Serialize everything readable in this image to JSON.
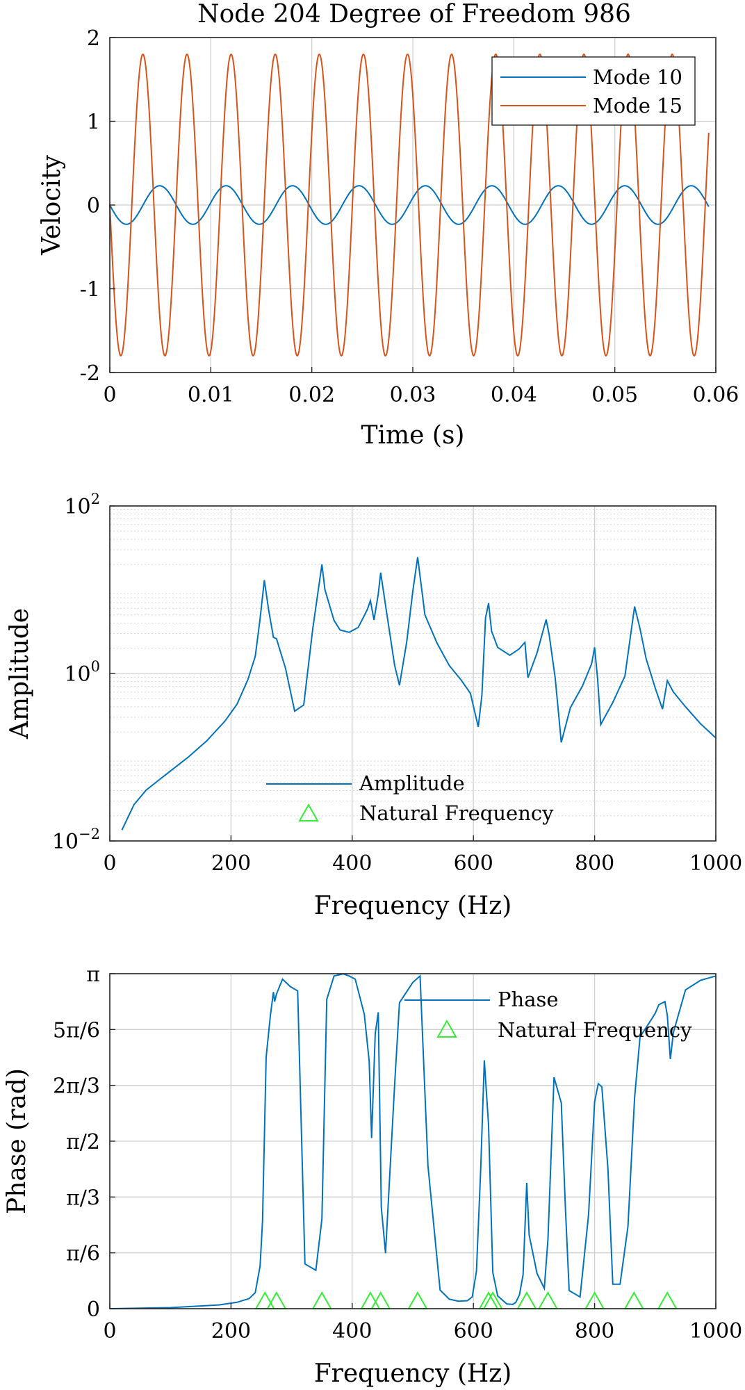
{
  "chart_data": [
    {
      "type": "line",
      "title": "Node 204 Degree of Freedom 986",
      "xlabel": "Time (s)",
      "ylabel": "Velocity",
      "xlim": [
        0,
        0.06
      ],
      "ylim": [
        -2,
        2
      ],
      "xticks": [
        0,
        0.01,
        0.02,
        0.03,
        0.04,
        0.05,
        0.06
      ],
      "xtick_labels": [
        "0",
        "0.01",
        "0.02",
        "0.03",
        "0.04",
        "0.05",
        "0.06"
      ],
      "yticks": [
        -2,
        -1,
        0,
        1,
        2
      ],
      "ytick_labels": [
        "-2",
        "-1",
        "0",
        "1",
        "2"
      ],
      "grid": true,
      "legend_position": "top-right",
      "series": [
        {
          "name": "Mode 10",
          "color": "#0072BD",
          "amplitude": 0.23,
          "frequency_hz": 152,
          "t_end": 0.0593
        },
        {
          "name": "Mode 15",
          "color": "#D95319",
          "amplitude": 1.8,
          "frequency_hz": 229,
          "t_end": 0.0593
        }
      ]
    },
    {
      "type": "line",
      "xlabel": "Frequency (Hz)",
      "ylabel": "Amplitude",
      "xlim": [
        0,
        1000
      ],
      "ylim": [
        0.01,
        100
      ],
      "yscale": "log",
      "xticks": [
        0,
        200,
        400,
        600,
        800,
        1000
      ],
      "xtick_labels": [
        "0",
        "200",
        "400",
        "600",
        "800",
        "1000"
      ],
      "yticks": [
        0.01,
        1,
        100
      ],
      "ytick_labels": [
        {
          "base": "10",
          "exp": "−2"
        },
        {
          "base": "10",
          "exp": "0"
        },
        {
          "base": "10",
          "exp": "2"
        }
      ],
      "grid": true,
      "legend_position": "bottom-center",
      "series": [
        {
          "name": "Amplitude",
          "color": "#0072BD",
          "x": [
            20,
            40,
            60,
            80,
            100,
            130,
            160,
            190,
            210,
            228,
            240,
            248,
            255,
            262,
            270,
            275,
            290,
            305,
            320,
            335,
            350,
            355,
            370,
            380,
            395,
            410,
            425,
            430,
            436,
            443,
            447,
            455,
            470,
            478,
            490,
            500,
            508,
            520,
            540,
            560,
            580,
            595,
            608,
            614,
            620,
            625,
            630,
            640,
            660,
            675,
            685,
            690,
            705,
            720,
            725,
            735,
            745,
            760,
            780,
            795,
            800,
            805,
            810,
            830,
            850,
            866,
            875,
            885,
            900,
            912,
            920,
            930,
            950,
            975,
            1000
          ],
          "values": [
            0.0135,
            0.0272,
            0.0405,
            0.0527,
            0.0683,
            0.101,
            0.157,
            0.27,
            0.43,
            0.85,
            1.6,
            4.5,
            13.0,
            5.8,
            2.7,
            2.6,
            1.15,
            0.355,
            0.42,
            3.45,
            20.0,
            10.0,
            4.3,
            3.3,
            3.1,
            3.55,
            5.8,
            7.4,
            4.35,
            8.9,
            16.0,
            6.5,
            1.25,
            0.72,
            2.4,
            9.6,
            24.5,
            5.0,
            2.3,
            1.25,
            0.83,
            0.58,
            0.23,
            0.55,
            4.6,
            6.9,
            3.2,
            2.05,
            1.65,
            1.95,
            2.35,
            0.89,
            1.76,
            4.4,
            2.9,
            0.88,
            0.15,
            0.39,
            0.71,
            1.3,
            2.05,
            0.85,
            0.245,
            0.45,
            0.93,
            6.3,
            3.4,
            1.5,
            0.67,
            0.375,
            0.82,
            0.6,
            0.4,
            0.25,
            0.17
          ]
        },
        {
          "name": "Natural Frequency",
          "color": "#33EE33",
          "marker": "triangle",
          "x": [],
          "values": []
        }
      ]
    },
    {
      "type": "line",
      "xlabel": "Frequency (Hz)",
      "ylabel": "Phase (rad)",
      "xlim": [
        0,
        1000
      ],
      "ylim": [
        0,
        3.14159
      ],
      "xticks": [
        0,
        200,
        400,
        600,
        800,
        1000
      ],
      "xtick_labels": [
        "0",
        "200",
        "400",
        "600",
        "800",
        "1000"
      ],
      "yticks": [
        0,
        0.5236,
        1.0472,
        1.5708,
        2.0944,
        2.618,
        3.14159
      ],
      "ytick_labels": [
        "0",
        "π/6",
        "π/3",
        "π/2",
        "2π/3",
        "5π/6",
        "π"
      ],
      "grid": true,
      "legend_position": "top-right",
      "series": [
        {
          "name": "Phase",
          "color": "#0072BD",
          "x": [
            0,
            100,
            180,
            210,
            230,
            240,
            248,
            252,
            258,
            265,
            270,
            272,
            275,
            285,
            298,
            310,
            322,
            340,
            350,
            358,
            370,
            385,
            395,
            405,
            420,
            428,
            432,
            438,
            443,
            448,
            455,
            470,
            478,
            485,
            500,
            512,
            525,
            545,
            560,
            575,
            590,
            598,
            605,
            612,
            618,
            625,
            632,
            640,
            655,
            665,
            670,
            676,
            682,
            688,
            692,
            705,
            717,
            723,
            733,
            745,
            752,
            758,
            764,
            776,
            790,
            800,
            806,
            812,
            822,
            830,
            842,
            855,
            866,
            875,
            890,
            900,
            906,
            916,
            920,
            925,
            930,
            950,
            975,
            1000
          ],
          "values": [
            0.0,
            0.01,
            0.035,
            0.06,
            0.095,
            0.15,
            0.4,
            0.82,
            2.36,
            2.75,
            2.97,
            2.88,
            2.95,
            3.09,
            3.02,
            2.98,
            0.42,
            0.36,
            0.84,
            2.9,
            3.12,
            3.14,
            3.12,
            3.09,
            2.76,
            2.32,
            1.6,
            2.58,
            2.78,
            0.95,
            0.52,
            2.1,
            2.87,
            2.93,
            3.06,
            3.12,
            1.34,
            0.175,
            0.09,
            0.07,
            0.075,
            0.11,
            0.35,
            1.3,
            2.33,
            1.72,
            0.34,
            0.12,
            0.045,
            0.04,
            0.06,
            0.13,
            0.32,
            1.18,
            0.69,
            0.33,
            0.19,
            0.65,
            2.17,
            1.93,
            0.92,
            0.17,
            0.15,
            0.11,
            0.88,
            1.94,
            2.11,
            2.08,
            1.31,
            0.23,
            0.23,
            0.77,
            1.98,
            2.55,
            2.68,
            2.77,
            2.85,
            2.88,
            2.75,
            2.34,
            2.59,
            2.99,
            3.08,
            3.12
          ]
        },
        {
          "name": "Natural Frequency",
          "color": "#33EE33",
          "marker": "triangle",
          "x": [
            256,
            275,
            350,
            430,
            447,
            508,
            625,
            632,
            688,
            723,
            800,
            865,
            920
          ],
          "values": [
            0,
            0,
            0,
            0,
            0,
            0,
            0,
            0,
            0,
            0,
            0,
            0,
            0
          ]
        }
      ]
    }
  ]
}
